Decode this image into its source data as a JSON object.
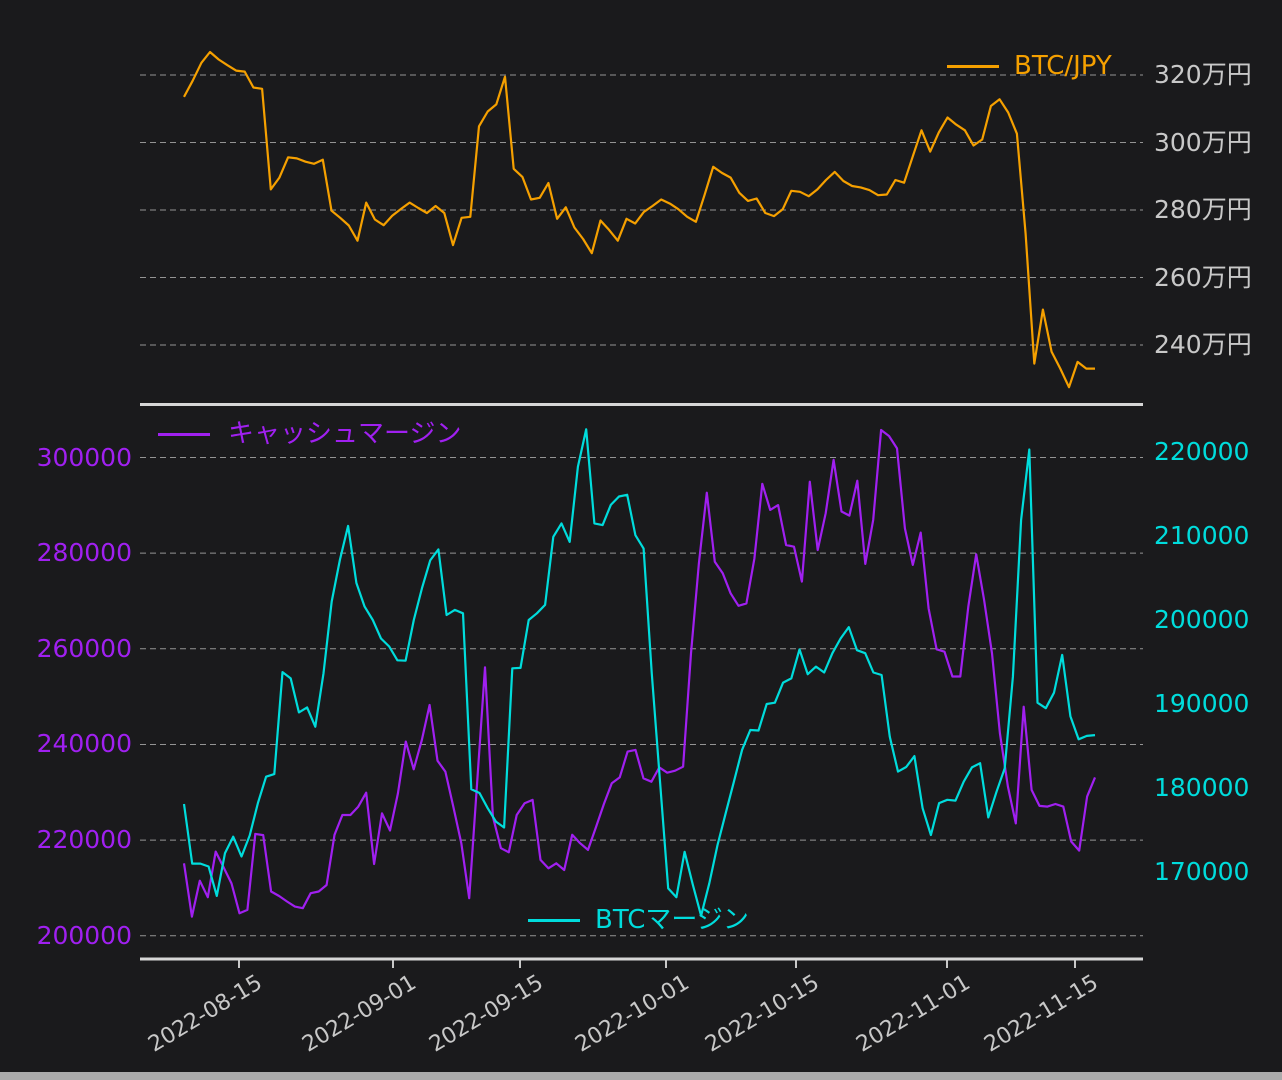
{
  "page": {
    "background": "#1a1a1c",
    "footer_bar_color": "#ababab"
  },
  "chart_data": {
    "type": "line",
    "grid": "dashed horizontal",
    "x_axis": {
      "frequency": "daily",
      "approx_start": "2022-08-09",
      "approx_end": "2022-11-17",
      "tick_labels": [
        "2022-08-15",
        "2022-09-01",
        "2022-09-15",
        "2022-10-01",
        "2022-10-15",
        "2022-11-01",
        "2022-11-15"
      ],
      "label_color": "#c8c8c8"
    },
    "panels": [
      {
        "name": "price-panel",
        "legend": {
          "label": "BTC/JPY"
        },
        "y_axis": {
          "side": "right",
          "unit": "万円",
          "tick_labels": [
            "320万円",
            "300万円",
            "280万円",
            "260万円",
            "240万円"
          ],
          "tick_values": [
            320,
            300,
            280,
            260,
            240
          ],
          "color": "#c8c8c8"
        },
        "series": [
          {
            "name": "BTC/JPY",
            "color": "#f5a000",
            "unit": "万円",
            "values": [
              313.5,
              318.3,
              323.6,
              326.8,
              324.6,
              322.9,
              321.3,
              321.0,
              316.3,
              315.9,
              286.1,
              289.6,
              295.6,
              295.3,
              294.3,
              293.7,
              294.9,
              279.8,
              277.7,
              275.4,
              270.9,
              282.2,
              277.2,
              275.5,
              278.3,
              280.3,
              282.2,
              280.6,
              279.1,
              281.2,
              279.1,
              269.6,
              277.7,
              278.0,
              304.8,
              309.2,
              311.3,
              319.5,
              292.2,
              289.8,
              283.1,
              283.6,
              288.0,
              277.4,
              280.8,
              274.8,
              271.4,
              267.2,
              276.9,
              274.1,
              270.9,
              277.4,
              276.0,
              279.4,
              281.2,
              283.1,
              281.9,
              280.2,
              278.0,
              276.5,
              284.5,
              292.8,
              291.0,
              289.6,
              285.1,
              282.7,
              283.4,
              279.1,
              278.2,
              280.2,
              285.7,
              285.4,
              284.1,
              286.1,
              288.9,
              291.3,
              288.6,
              287.1,
              286.7,
              285.9,
              284.4,
              284.6,
              288.9,
              288.1,
              295.9,
              303.6,
              297.3,
              303.0,
              307.4,
              305.3,
              303.6,
              299.1,
              300.9,
              310.8,
              312.8,
              308.9,
              302.6,
              273.0,
              234.5,
              250.5,
              238.0,
              233.0,
              227.5,
              235.0,
              233.0,
              233.0
            ]
          }
        ]
      },
      {
        "name": "margin-panel",
        "legends": [
          {
            "label": "キャッシュマージン"
          },
          {
            "label": "BTCマージン"
          }
        ],
        "y_axis_left": {
          "color": "#a020f0",
          "tick_labels": [
            "300000",
            "280000",
            "260000",
            "240000",
            "220000",
            "200000"
          ],
          "tick_values": [
            300000,
            280000,
            260000,
            240000,
            220000,
            200000
          ]
        },
        "y_axis_right": {
          "color": "#00dcdc",
          "tick_labels": [
            "220000",
            "210000",
            "200000",
            "190000",
            "180000",
            "170000"
          ],
          "tick_values": [
            220000,
            210000,
            200000,
            190000,
            180000,
            170000
          ]
        },
        "series": [
          {
            "name": "キャッシュマージン",
            "axis": "left",
            "color": "#a020f0",
            "values": [
              215150,
              204000,
              211500,
              208050,
              217600,
              214300,
              210950,
              204700,
              205400,
              221300,
              221050,
              209250,
              208300,
              207150,
              206100,
              205750,
              208900,
              209250,
              210600,
              221100,
              225250,
              225250,
              227000,
              229900,
              215000,
              225600,
              222000,
              229750,
              240600,
              234800,
              240800,
              248250,
              236600,
              234300,
              227000,
              219350,
              207850,
              231900,
              256100,
              224900,
              218300,
              217450,
              225250,
              227700,
              228400,
              215850,
              214100,
              215150,
              213750,
              221100,
              219350,
              217950,
              222650,
              227550,
              231900,
              233100,
              238500,
              238850,
              232900,
              232200,
              235200,
              234100,
              234500,
              235350,
              259050,
              277900,
              292650,
              278200,
              275800,
              271600,
              269000,
              269500,
              278900,
              294500,
              289050,
              290050,
              281700,
              281350,
              274050,
              294950,
              280650,
              288350,
              299500,
              288700,
              287850,
              295150,
              277750,
              286950,
              305750,
              304500,
              301900,
              285200,
              277550,
              284300,
              268450,
              259900,
              259400,
              254200,
              254200,
              268800,
              279750,
              270200,
              259050,
              242350,
              231200,
              223500,
              247900,
              230500,
              227150,
              227000,
              227550,
              227000,
              219700,
              217800,
              229100,
              233100
            ]
          },
          {
            "name": "BTCマージン",
            "axis": "right",
            "color": "#00dcdc",
            "values": [
              178100,
              171000,
              171000,
              170650,
              167150,
              172250,
              174200,
              171850,
              174350,
              178200,
              181350,
              181650,
              193800,
              193050,
              189000,
              189600,
              187300,
              193650,
              202200,
              207150,
              211200,
              204400,
              201600,
              200000,
              197800,
              196850,
              195200,
              195150,
              200000,
              203800,
              207100,
              208400,
              200600,
              201200,
              200800,
              179850,
              179400,
              177600,
              176000,
              175300,
              194250,
              194300,
              200000,
              200800,
              201800,
              209900,
              211500,
              209300,
              218250,
              222700,
              211500,
              211300,
              213700,
              214700,
              214900,
              210100,
              208500,
              193600,
              180800,
              168050,
              167000,
              172400,
              168500,
              164800,
              168650,
              173200,
              177000,
              180750,
              184550,
              186900,
              186850,
              190000,
              190150,
              192550,
              193050,
              196500,
              193550,
              194450,
              193750,
              196050,
              197800,
              199150,
              196400,
              196050,
              193750,
              193450,
              186100,
              181950,
              182500,
              183800,
              177600,
              174400,
              178200,
              178600,
              178500,
              180750,
              182450,
              182950,
              176500,
              179550,
              182350,
              193250,
              211900,
              220300,
              190150,
              189500,
              191350,
              195850,
              188550,
              185800,
              186200,
              186300
            ]
          }
        ]
      }
    ]
  }
}
